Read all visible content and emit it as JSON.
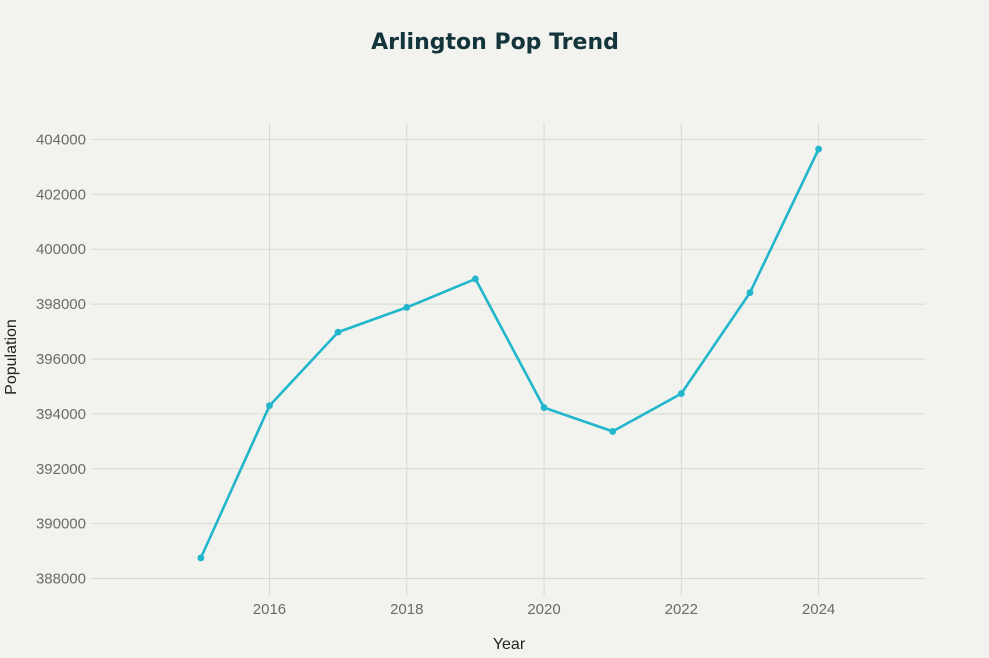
{
  "colors": {
    "background": "#f2f2ee",
    "series": "#21b6cc",
    "grid": "#d8d8d3",
    "title": "#13343b",
    "tick_text": "#6b6b6b"
  },
  "chart_data": {
    "type": "line",
    "title": "Arlington Pop Trend",
    "xlabel": "Year",
    "ylabel": "Population",
    "x": [
      2015,
      2016,
      2017,
      2018,
      2019,
      2020,
      2021,
      2022,
      2023,
      2024
    ],
    "series": [
      {
        "values": [
          388750,
          394300,
          396980,
          397880,
          398920,
          394230,
          393360,
          394740,
          398420,
          403650
        ]
      }
    ],
    "xlim": [
      2013.4,
      2025.55
    ],
    "ylim": [
      387400,
      404600
    ],
    "xticks": [
      2016,
      2018,
      2020,
      2022,
      2024
    ],
    "yticks": [
      388000,
      390000,
      392000,
      394000,
      396000,
      398000,
      400000,
      402000,
      404000
    ],
    "grid": true,
    "markers": true
  }
}
